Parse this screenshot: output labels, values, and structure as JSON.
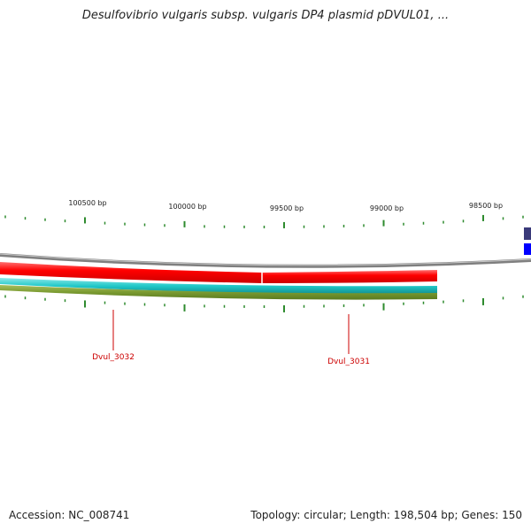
{
  "title": "Desulfovibrio vulgaris subsp. vulgaris DP4 plasmid pDVUL01, ...",
  "scale_labels": [
    "100500 bp",
    "100000 bp",
    "99500 bp",
    "99000 bp",
    "98500 bp"
  ],
  "genes": [
    {
      "name": "Dvul_3032"
    },
    {
      "name": "Dvul_3031"
    }
  ],
  "footer": {
    "accession": "Accession: NC_008741",
    "summary": "Topology: circular; Length: 198,504 bp; Genes: 150"
  },
  "colors": {
    "tick": "#2e8b2e",
    "backbone": "#808080",
    "gene_forward": "#ff0000",
    "cds": "#20c8c8",
    "feature": "#7a9a30",
    "gene_label": "#cc0000",
    "right_feature_1": "#3a3a7a",
    "right_feature_2": "#0000ff"
  }
}
